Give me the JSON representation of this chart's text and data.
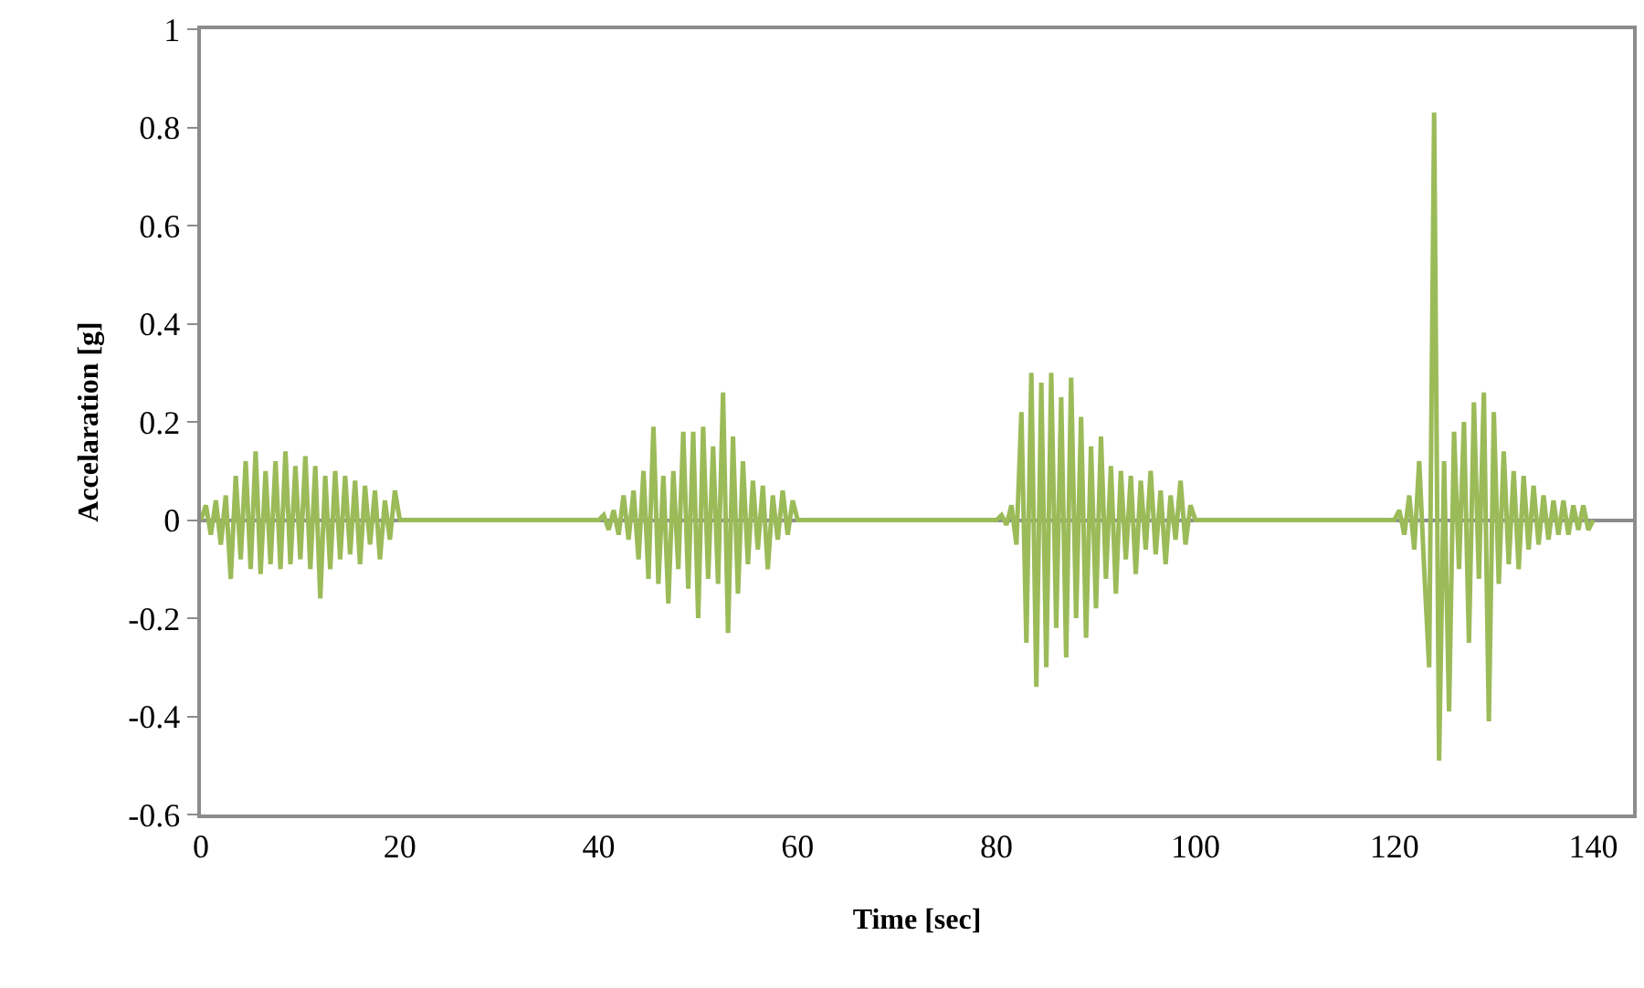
{
  "chart_data": {
    "type": "line",
    "xlabel": "Time [sec]",
    "ylabel": "Accelaration [g]",
    "xlim": [
      0,
      144
    ],
    "ylim": [
      -0.6,
      1
    ],
    "xticks": [
      0,
      20,
      40,
      60,
      80,
      100,
      120,
      140
    ],
    "yticks": [
      -0.6,
      -0.4,
      -0.2,
      0,
      0.2,
      0.4,
      0.6,
      0.8,
      1
    ],
    "series": [
      {
        "color": "#9bbb59",
        "x": [
          0,
          0.5,
          1,
          1.5,
          2,
          2.5,
          3,
          3.5,
          4,
          4.5,
          5,
          5.5,
          6,
          6.5,
          7,
          7.5,
          8,
          8.5,
          9,
          9.5,
          10,
          10.5,
          11,
          11.5,
          12,
          12.5,
          13,
          13.5,
          14,
          14.5,
          15,
          15.5,
          16,
          16.5,
          17,
          17.5,
          18,
          18.5,
          19,
          19.5,
          20,
          40,
          40.5,
          41,
          41.5,
          42,
          42.5,
          43,
          43.5,
          44,
          44.5,
          45,
          45.5,
          46,
          46.5,
          47,
          47.5,
          48,
          48.5,
          49,
          49.5,
          50,
          50.5,
          51,
          51.5,
          52,
          52.5,
          53,
          53.5,
          54,
          54.5,
          55,
          55.5,
          56,
          56.5,
          57,
          57.5,
          58,
          58.5,
          59,
          59.5,
          60,
          80,
          80.5,
          81,
          81.5,
          82,
          82.5,
          83,
          83.5,
          84,
          84.5,
          85,
          85.5,
          86,
          86.5,
          87,
          87.5,
          88,
          88.5,
          89,
          89.5,
          90,
          90.5,
          91,
          91.5,
          92,
          92.5,
          93,
          93.5,
          94,
          94.5,
          95,
          95.5,
          96,
          96.5,
          97,
          97.5,
          98,
          98.5,
          99,
          99.5,
          100,
          120,
          120.5,
          121,
          121.5,
          122,
          122.5,
          123,
          123.5,
          124,
          124.5,
          125,
          125.5,
          126,
          126.5,
          127,
          127.5,
          128,
          128.5,
          129,
          129.5,
          130,
          130.5,
          131,
          131.5,
          132,
          132.5,
          133,
          133.5,
          134,
          134.5,
          135,
          135.5,
          136,
          136.5,
          137,
          137.5,
          138,
          138.5,
          139,
          139.5,
          140
        ],
        "values": [
          0,
          0.03,
          -0.03,
          0.04,
          -0.05,
          0.05,
          -0.12,
          0.09,
          -0.08,
          0.12,
          -0.1,
          0.14,
          -0.11,
          0.1,
          -0.09,
          0.12,
          -0.1,
          0.14,
          -0.09,
          0.11,
          -0.08,
          0.13,
          -0.1,
          0.11,
          -0.16,
          0.09,
          -0.1,
          0.1,
          -0.08,
          0.09,
          -0.07,
          0.08,
          -0.09,
          0.07,
          -0.05,
          0.06,
          -0.08,
          0.04,
          -0.04,
          0.06,
          0,
          0,
          0.01,
          -0.02,
          0.02,
          -0.03,
          0.05,
          -0.04,
          0.06,
          -0.08,
          0.1,
          -0.12,
          0.19,
          -0.13,
          0.09,
          -0.17,
          0.1,
          -0.1,
          0.18,
          -0.14,
          0.18,
          -0.2,
          0.19,
          -0.12,
          0.15,
          -0.13,
          0.26,
          -0.23,
          0.17,
          -0.15,
          0.12,
          -0.09,
          0.08,
          -0.06,
          0.07,
          -0.1,
          0.05,
          -0.04,
          0.06,
          -0.03,
          0.04,
          0,
          0,
          0.01,
          -0.01,
          0.03,
          -0.05,
          0.22,
          -0.25,
          0.3,
          -0.34,
          0.28,
          -0.3,
          0.3,
          -0.22,
          0.25,
          -0.28,
          0.29,
          -0.2,
          0.21,
          -0.24,
          0.15,
          -0.18,
          0.17,
          -0.12,
          0.11,
          -0.15,
          0.1,
          -0.08,
          0.09,
          -0.11,
          0.08,
          -0.06,
          0.1,
          -0.07,
          0.06,
          -0.09,
          0.05,
          -0.04,
          0.08,
          -0.05,
          0.03,
          0,
          0,
          0.02,
          -0.03,
          0.05,
          -0.06,
          0.12,
          -0.1,
          -0.3,
          0.83,
          -0.49,
          0.12,
          -0.39,
          0.18,
          -0.1,
          0.2,
          -0.25,
          0.24,
          -0.12,
          0.26,
          -0.41,
          0.22,
          -0.13,
          0.14,
          -0.09,
          0.1,
          -0.1,
          0.09,
          -0.06,
          0.07,
          -0.05,
          0.05,
          -0.04,
          0.04,
          -0.03,
          0.04,
          -0.03,
          0.03,
          -0.02,
          0.03,
          -0.02,
          0
        ]
      }
    ]
  }
}
